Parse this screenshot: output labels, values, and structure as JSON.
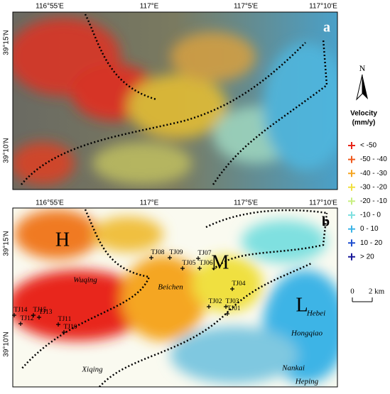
{
  "axes": {
    "top": [
      "116°55'E",
      "117°E",
      "117°5'E",
      "117°10'E"
    ],
    "left_a": [
      "39°15'N",
      "39°10'N"
    ],
    "left_b": [
      "39°15'N",
      "39°10'N"
    ]
  },
  "panels": {
    "a": {
      "label": "a"
    },
    "b": {
      "label": "b",
      "zones": [
        "H",
        "M",
        "L"
      ],
      "districts": [
        "Wuqing",
        "Beichen",
        "Xiqing",
        "Hebei",
        "Hongqiao",
        "Nankai",
        "Heping"
      ],
      "stations": [
        "TJ08",
        "TJ09",
        "TJ07",
        "TJ05",
        "TJ06",
        "TJ04",
        "TJ02",
        "TJ03",
        "TJ01",
        "TJ14",
        "TJ15",
        "TJ13",
        "TJ12",
        "TJ11",
        "TJ10"
      ]
    }
  },
  "north": "N",
  "legend": {
    "title": "Velocity",
    "unit": "(mm/y)",
    "items": [
      {
        "label": "< -50",
        "color": "#e8261a"
      },
      {
        "label": "-50 - -40",
        "color": "#f05a1e"
      },
      {
        "label": "-40 - -30",
        "color": "#f5a623"
      },
      {
        "label": "-30 - -20",
        "color": "#f0e040"
      },
      {
        "label": "-20 - -10",
        "color": "#c8ef80"
      },
      {
        "label": "-10 - 0",
        "color": "#7fe0e0"
      },
      {
        "label": "0 - 10",
        "color": "#3cb4e6"
      },
      {
        "label": "10 - 20",
        "color": "#2050d0"
      },
      {
        "label": "> 20",
        "color": "#1a1a9a"
      }
    ]
  },
  "scale": {
    "start": "0",
    "end": "2 km"
  }
}
